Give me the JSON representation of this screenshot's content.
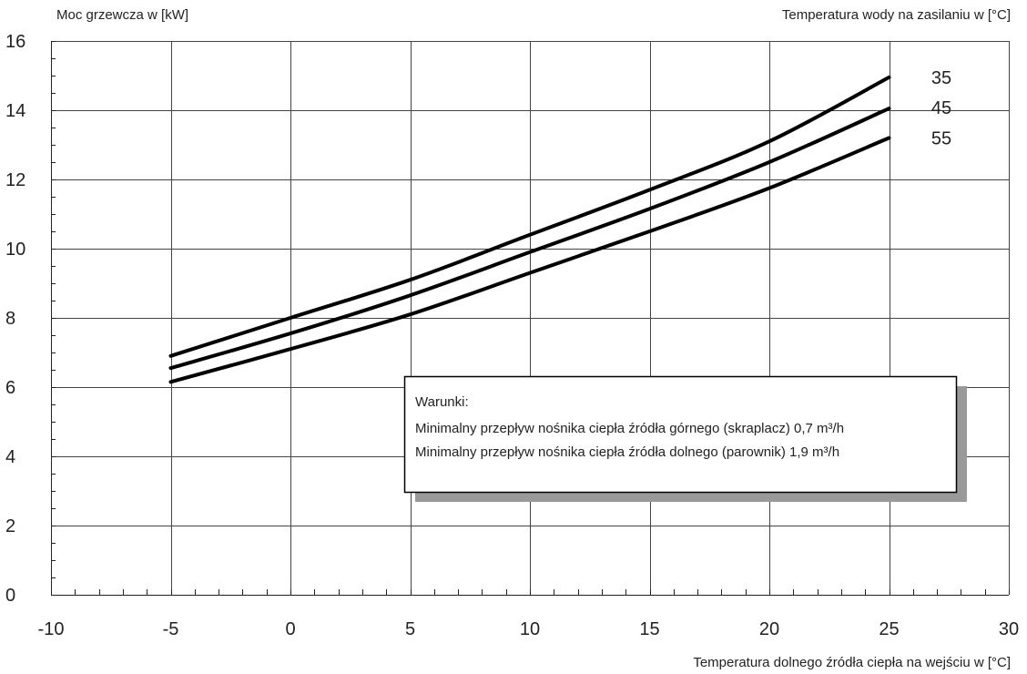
{
  "chart_data": {
    "type": "line",
    "ylabel": "Moc grzewcza w [kW]",
    "xlabel": "Temperatura dolnego źródła ciepła na wejściu w [°C]",
    "legend_title": "Temperatura wody na zasilaniu w [°C]",
    "xlim": [
      -10,
      30
    ],
    "ylim": [
      0,
      16
    ],
    "xticks": [
      -10,
      -5,
      0,
      5,
      10,
      15,
      20,
      25,
      30
    ],
    "yticks": [
      0,
      2,
      4,
      6,
      8,
      10,
      12,
      14,
      16
    ],
    "grid": true,
    "legend_position": "right, at line ends",
    "series": [
      {
        "name": "35",
        "x": [
          -5,
          0,
          5,
          10,
          15,
          20,
          25
        ],
        "values": [
          6.9,
          8.0,
          9.1,
          10.4,
          11.7,
          13.1,
          14.95
        ]
      },
      {
        "name": "45",
        "x": [
          -5,
          0,
          5,
          10,
          15,
          20,
          25
        ],
        "values": [
          6.55,
          7.55,
          8.65,
          9.9,
          11.15,
          12.5,
          14.05
        ]
      },
      {
        "name": "55",
        "x": [
          -5,
          0,
          5,
          10,
          15,
          20,
          25
        ],
        "values": [
          6.15,
          7.1,
          8.1,
          9.3,
          10.5,
          11.75,
          13.2
        ]
      }
    ],
    "colors": {
      "lines": "#000000",
      "grid": "#444444",
      "shadow": "#999999"
    },
    "annotation": {
      "title": "Warunki:",
      "lines": [
        "Minimalny przepływ nośnika ciepła źródła górnego (skraplacz) 0,7 m³/h",
        "Minimalny przepływ nośnika ciepła źródła dolnego (parownik) 1,9 m³/h"
      ]
    }
  }
}
